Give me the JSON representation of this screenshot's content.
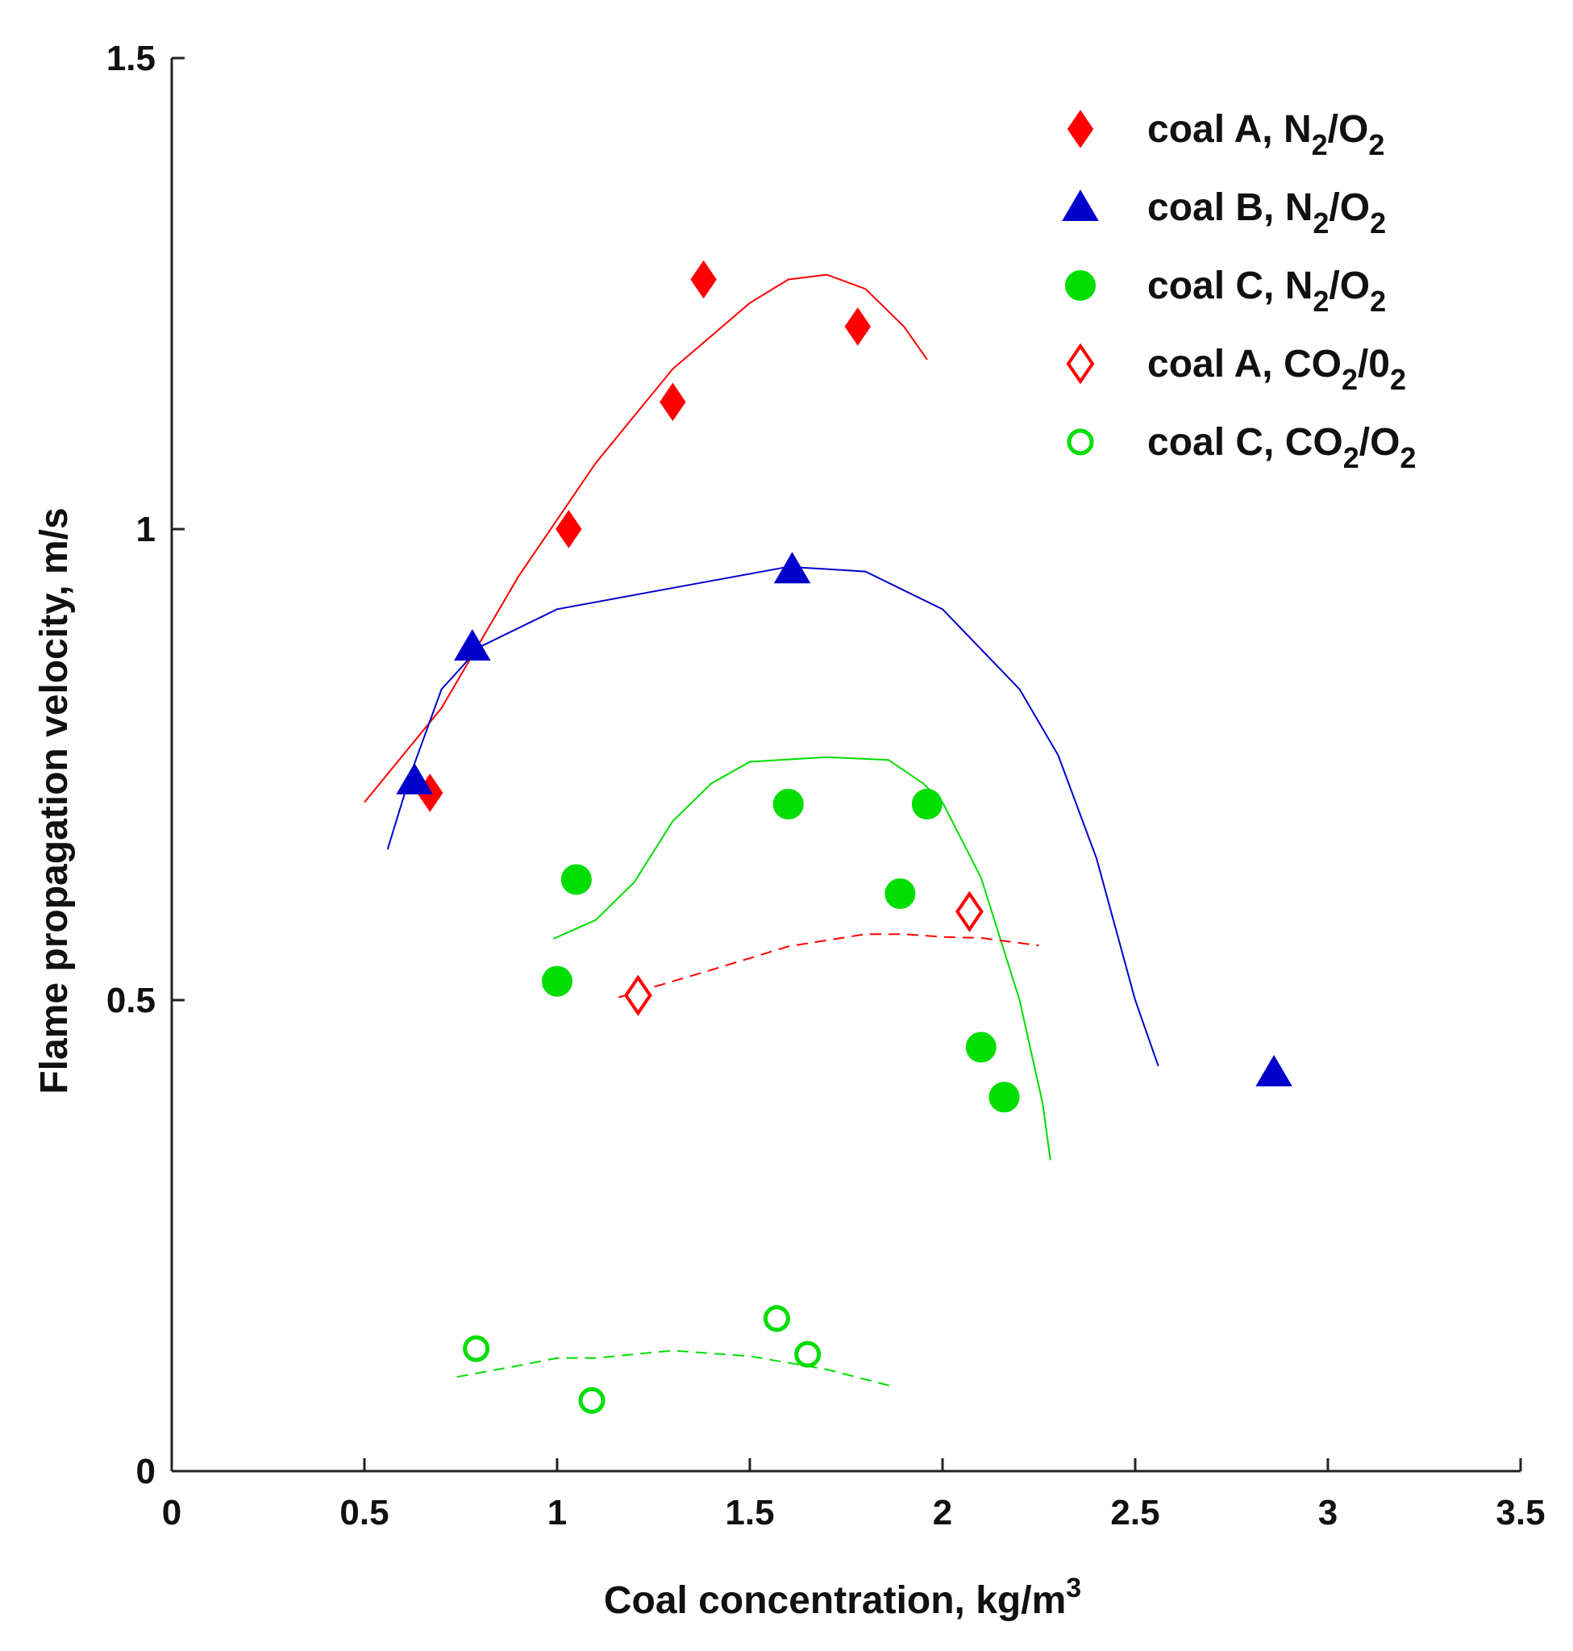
{
  "chart_data": {
    "type": "scatter",
    "xlabel": "Coal concentration, kg/m",
    "xlabel_sup": "3",
    "ylabel": "Flame propagation velocity, m/s",
    "xlim": [
      0,
      3.5
    ],
    "ylim": [
      0,
      1.5
    ],
    "xticks": [
      "0",
      "0.5",
      "1",
      "1.5",
      "2",
      "2.5",
      "3",
      "3.5"
    ],
    "yticks": [
      "0",
      "0.5",
      "1",
      "1.5"
    ],
    "grid": false,
    "legend_position": "top-right",
    "series": [
      {
        "name": "coal A, N2/O2",
        "label_parts": [
          "coal A, N",
          "2",
          "/O",
          "2"
        ],
        "marker": "diamond-filled",
        "color": "#ff0000",
        "points": [
          [
            0.67,
            0.72
          ],
          [
            1.03,
            1.0
          ],
          [
            1.3,
            1.135
          ],
          [
            1.38,
            1.265
          ],
          [
            1.78,
            1.215
          ]
        ],
        "fit": {
          "style": "solid",
          "points": [
            [
              0.5,
              0.71
            ],
            [
              0.7,
              0.81
            ],
            [
              0.9,
              0.95
            ],
            [
              1.1,
              1.07
            ],
            [
              1.3,
              1.17
            ],
            [
              1.5,
              1.24
            ],
            [
              1.6,
              1.265
            ],
            [
              1.7,
              1.27
            ],
            [
              1.8,
              1.255
            ],
            [
              1.9,
              1.215
            ],
            [
              1.96,
              1.18
            ]
          ]
        }
      },
      {
        "name": "coal B, N2/O2",
        "label_parts": [
          "coal B, N",
          "2",
          "/O",
          "2"
        ],
        "marker": "triangle-filled",
        "color": "#0000cc",
        "points": [
          [
            0.63,
            0.733
          ],
          [
            0.78,
            0.875
          ],
          [
            1.61,
            0.957
          ],
          [
            2.86,
            0.423
          ]
        ],
        "fit": {
          "style": "solid",
          "points": [
            [
              0.56,
              0.66
            ],
            [
              0.62,
              0.74
            ],
            [
              0.7,
              0.83
            ],
            [
              0.8,
              0.875
            ],
            [
              1.0,
              0.915
            ],
            [
              1.4,
              0.945
            ],
            [
              1.6,
              0.96
            ],
            [
              1.8,
              0.955
            ],
            [
              2.0,
              0.915
            ],
            [
              2.2,
              0.83
            ],
            [
              2.3,
              0.76
            ],
            [
              2.4,
              0.65
            ],
            [
              2.5,
              0.5
            ],
            [
              2.56,
              0.43
            ]
          ]
        }
      },
      {
        "name": "coal C, N2/O2",
        "label_parts": [
          "coal C, N",
          "2",
          "/O",
          "2"
        ],
        "marker": "circle-filled",
        "color": "#00dd00",
        "points": [
          [
            1.0,
            0.52
          ],
          [
            1.05,
            0.628
          ],
          [
            1.6,
            0.708
          ],
          [
            1.89,
            0.613
          ],
          [
            1.96,
            0.708
          ],
          [
            2.1,
            0.45
          ],
          [
            2.16,
            0.397
          ]
        ],
        "fit": {
          "style": "solid",
          "points": [
            [
              0.99,
              0.565
            ],
            [
              1.1,
              0.585
            ],
            [
              1.2,
              0.625
            ],
            [
              1.3,
              0.69
            ],
            [
              1.4,
              0.73
            ],
            [
              1.5,
              0.753
            ],
            [
              1.7,
              0.758
            ],
            [
              1.86,
              0.755
            ],
            [
              1.95,
              0.73
            ],
            [
              2.0,
              0.71
            ],
            [
              2.1,
              0.63
            ],
            [
              2.2,
              0.5
            ],
            [
              2.26,
              0.39
            ],
            [
              2.28,
              0.33
            ]
          ]
        }
      },
      {
        "name": "coal A, CO2/02",
        "label_parts": [
          "coal A, CO",
          "2",
          "/0",
          "2"
        ],
        "marker": "diamond-open",
        "color": "#ff0000",
        "points": [
          [
            1.21,
            0.505
          ],
          [
            2.07,
            0.594
          ]
        ],
        "fit": {
          "style": "dashed",
          "points": [
            [
              1.16,
              0.503
            ],
            [
              1.4,
              0.532
            ],
            [
              1.6,
              0.557
            ],
            [
              1.8,
              0.57
            ],
            [
              1.9,
              0.57
            ],
            [
              2.0,
              0.567
            ],
            [
              2.1,
              0.566
            ],
            [
              2.25,
              0.558
            ]
          ]
        }
      },
      {
        "name": "coal C, CO2/O2",
        "label_parts": [
          "coal C, CO",
          "2",
          "/O",
          "2"
        ],
        "marker": "circle-open",
        "color": "#00dd00",
        "points": [
          [
            0.79,
            0.13
          ],
          [
            1.09,
            0.075
          ],
          [
            1.57,
            0.162
          ],
          [
            1.65,
            0.124
          ]
        ],
        "fit": {
          "style": "dashed",
          "points": [
            [
              0.74,
              0.1
            ],
            [
              0.9,
              0.112
            ],
            [
              1.0,
              0.12
            ],
            [
              1.1,
              0.12
            ],
            [
              1.3,
              0.128
            ],
            [
              1.5,
              0.122
            ],
            [
              1.6,
              0.115
            ],
            [
              1.7,
              0.108
            ],
            [
              1.87,
              0.09
            ]
          ]
        }
      }
    ]
  }
}
